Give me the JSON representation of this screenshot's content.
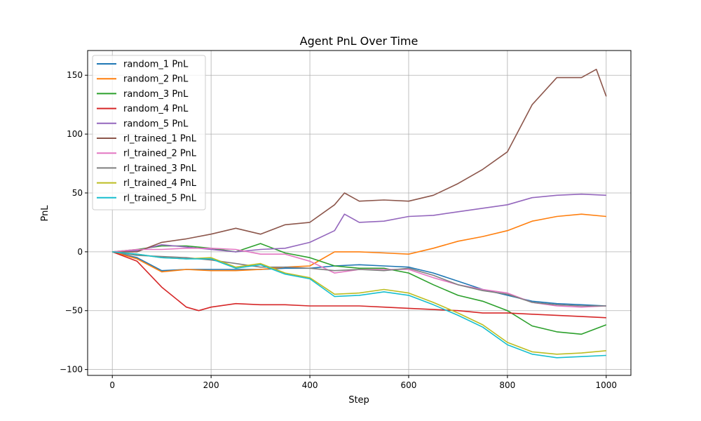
{
  "chart_data": {
    "type": "line",
    "title": "Agent PnL Over Time",
    "xlabel": "Step",
    "ylabel": "PnL",
    "xlim": [
      -50,
      1050
    ],
    "ylim": [
      -105,
      171
    ],
    "xticks": [
      0,
      200,
      400,
      600,
      800,
      1000
    ],
    "yticks": [
      -100,
      -50,
      0,
      50,
      100,
      150
    ],
    "grid": true,
    "legend_position": "upper-left",
    "series": [
      {
        "name": "random_1 PnL",
        "color": "#1f77b4",
        "x": [
          0,
          50,
          100,
          150,
          200,
          250,
          300,
          350,
          400,
          450,
          500,
          550,
          600,
          650,
          700,
          750,
          800,
          850,
          900,
          950,
          1000
        ],
        "y": [
          0,
          -5,
          -16,
          -15,
          -15,
          -15,
          -15,
          -14,
          -14,
          -12,
          -11,
          -12,
          -13,
          -18,
          -25,
          -32,
          -37,
          -42,
          -44,
          -45,
          -46
        ]
      },
      {
        "name": "random_2 PnL",
        "color": "#ff7f0e",
        "x": [
          0,
          50,
          100,
          150,
          200,
          250,
          300,
          350,
          400,
          450,
          500,
          550,
          600,
          650,
          700,
          750,
          800,
          850,
          900,
          950,
          1000
        ],
        "y": [
          0,
          -6,
          -17,
          -15,
          -16,
          -16,
          -15,
          -13,
          -12,
          0,
          0,
          -1,
          -2,
          3,
          9,
          13,
          18,
          26,
          30,
          32,
          30
        ]
      },
      {
        "name": "random_3 PnL",
        "color": "#2ca02c",
        "x": [
          0,
          50,
          100,
          150,
          200,
          250,
          300,
          350,
          400,
          450,
          500,
          550,
          600,
          650,
          700,
          750,
          800,
          850,
          900,
          950,
          1000
        ],
        "y": [
          0,
          2,
          5,
          5,
          3,
          0,
          7,
          -1,
          -5,
          -12,
          -14,
          -14,
          -18,
          -28,
          -37,
          -42,
          -50,
          -63,
          -68,
          -70,
          -62
        ]
      },
      {
        "name": "random_4 PnL",
        "color": "#d62728",
        "x": [
          0,
          50,
          100,
          150,
          175,
          200,
          250,
          300,
          350,
          400,
          450,
          500,
          550,
          600,
          650,
          700,
          750,
          800,
          850,
          900,
          950,
          1000
        ],
        "y": [
          0,
          -8,
          -30,
          -47,
          -50,
          -47,
          -44,
          -45,
          -45,
          -46,
          -46,
          -46,
          -47,
          -48,
          -49,
          -50,
          -52,
          -52,
          -53,
          -54,
          -55,
          -56
        ]
      },
      {
        "name": "random_5 PnL",
        "color": "#9467bd",
        "x": [
          0,
          50,
          100,
          150,
          200,
          250,
          300,
          350,
          400,
          450,
          470,
          500,
          550,
          600,
          650,
          700,
          750,
          800,
          850,
          900,
          950,
          1000
        ],
        "y": [
          0,
          1,
          6,
          4,
          2,
          0,
          2,
          3,
          8,
          18,
          32,
          25,
          26,
          30,
          31,
          34,
          37,
          40,
          46,
          48,
          49,
          48
        ]
      },
      {
        "name": "rl_trained_1 PnL",
        "color": "#8c564b",
        "x": [
          0,
          50,
          100,
          150,
          200,
          250,
          300,
          350,
          400,
          450,
          470,
          500,
          550,
          600,
          650,
          700,
          750,
          800,
          850,
          900,
          950,
          980,
          1000
        ],
        "y": [
          0,
          0,
          8,
          11,
          15,
          20,
          15,
          23,
          25,
          40,
          50,
          43,
          44,
          43,
          48,
          58,
          70,
          85,
          125,
          148,
          148,
          155,
          132
        ]
      },
      {
        "name": "rl_trained_2 PnL",
        "color": "#e377c2",
        "x": [
          0,
          50,
          100,
          150,
          200,
          250,
          300,
          350,
          400,
          450,
          500,
          550,
          600,
          650,
          700,
          750,
          800,
          850,
          900,
          950,
          1000
        ],
        "y": [
          0,
          2,
          2,
          3,
          3,
          2,
          -2,
          -2,
          -8,
          -18,
          -15,
          -15,
          -15,
          -22,
          -28,
          -32,
          -35,
          -43,
          -46,
          -47,
          -46
        ]
      },
      {
        "name": "rl_trained_3 PnL",
        "color": "#7f7f7f",
        "x": [
          0,
          50,
          100,
          150,
          200,
          250,
          300,
          350,
          400,
          450,
          500,
          550,
          600,
          650,
          700,
          750,
          800,
          850,
          900,
          950,
          1000
        ],
        "y": [
          0,
          -3,
          -4,
          -5,
          -7,
          -10,
          -13,
          -13,
          -14,
          -16,
          -15,
          -16,
          -14,
          -20,
          -28,
          -33,
          -36,
          -43,
          -45,
          -46,
          -46
        ]
      },
      {
        "name": "rl_trained_4 PnL",
        "color": "#bcbd22",
        "x": [
          0,
          50,
          100,
          150,
          200,
          250,
          300,
          350,
          400,
          450,
          500,
          550,
          600,
          650,
          700,
          750,
          800,
          850,
          900,
          950,
          1000
        ],
        "y": [
          0,
          -2,
          -5,
          -6,
          -5,
          -13,
          -10,
          -18,
          -22,
          -36,
          -35,
          -32,
          -35,
          -43,
          -52,
          -62,
          -77,
          -85,
          -87,
          -86,
          -84
        ]
      },
      {
        "name": "rl_trained_5 PnL",
        "color": "#17becf",
        "x": [
          0,
          50,
          100,
          150,
          200,
          250,
          300,
          350,
          400,
          450,
          500,
          550,
          600,
          650,
          700,
          750,
          800,
          850,
          900,
          950,
          1000
        ],
        "y": [
          0,
          -2,
          -5,
          -6,
          -6,
          -14,
          -11,
          -19,
          -23,
          -38,
          -37,
          -34,
          -37,
          -45,
          -54,
          -64,
          -79,
          -87,
          -90,
          -89,
          -88
        ]
      }
    ]
  }
}
